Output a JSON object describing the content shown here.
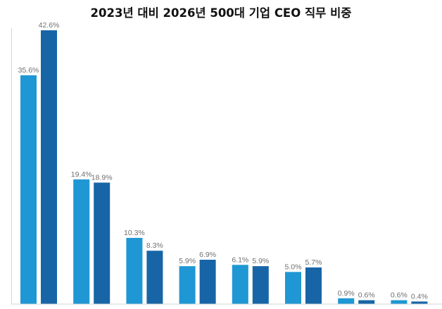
{
  "chart_data": {
    "type": "bar",
    "title": "2023년 대비 2026년 500대 기업 CEO 직무 비중",
    "xlabel": "",
    "ylabel": "",
    "ylim": [
      0,
      46
    ],
    "grid": false,
    "legend": "none",
    "categories": [
      "",
      "",
      "",
      "",
      "",
      "",
      "",
      ""
    ],
    "series": [
      {
        "color": "#1f97d4",
        "values": [
          35.6,
          19.4,
          10.3,
          5.9,
          6.1,
          5.0,
          0.9,
          0.6
        ],
        "labels": [
          "35.6%",
          "19.4%",
          "10.3%",
          "5.9%",
          "6.1%",
          "5.0%",
          "0.9%",
          "0.6%"
        ]
      },
      {
        "color": "#1765a7",
        "values": [
          42.6,
          18.9,
          8.3,
          6.9,
          5.9,
          5.7,
          0.6,
          0.4
        ],
        "labels": [
          "42.6%",
          "18.9%",
          "8.3%",
          "6.9%",
          "5.9%",
          "5.7%",
          "0.6%",
          "0.4%"
        ]
      }
    ],
    "colors": {
      "axis": "#d4d4d4",
      "label": "#6f6f6f",
      "title": "#111111"
    }
  }
}
